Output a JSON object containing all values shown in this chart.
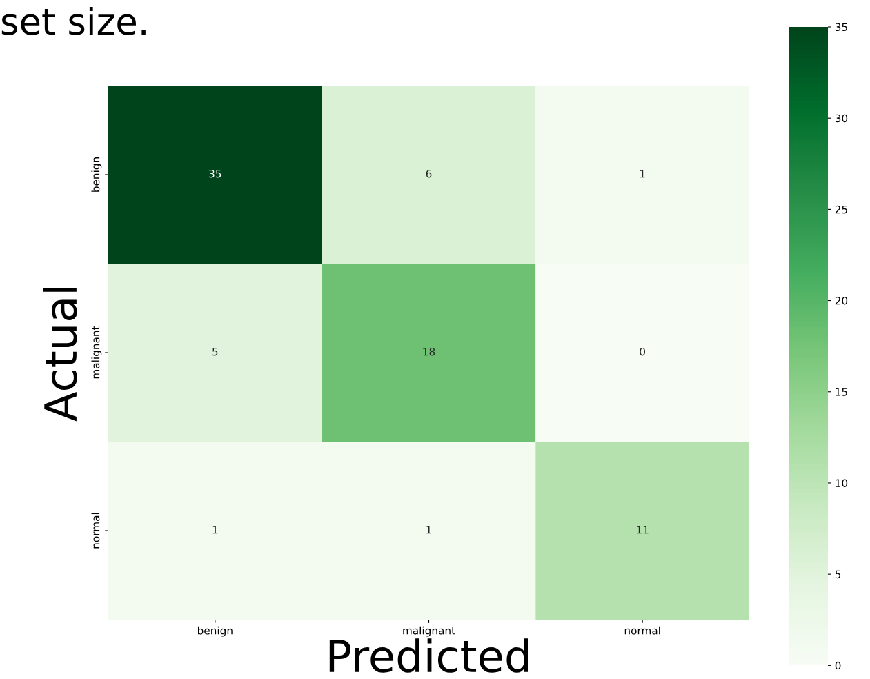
{
  "chart_data": {
    "type": "heatmap",
    "xlabel": "Predicted",
    "ylabel": "Actual",
    "annotations": [
      "set size."
    ],
    "categories": [
      "benign",
      "malignant",
      "normal"
    ],
    "y_categories": [
      "benign",
      "malignant",
      "normal"
    ],
    "cells": [
      [
        35,
        6,
        1
      ],
      [
        5,
        18,
        0
      ],
      [
        1,
        1,
        11
      ]
    ],
    "data_labels": true,
    "clim": [
      0,
      35
    ],
    "cticks": [
      0,
      5,
      10,
      15,
      20,
      25,
      30,
      35
    ]
  }
}
